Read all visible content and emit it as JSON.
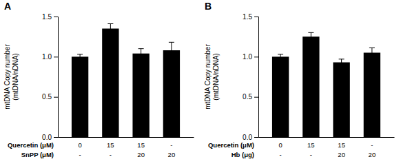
{
  "chart_data": [
    {
      "type": "bar",
      "title": "A",
      "categories": [
        null,
        null,
        null,
        null
      ],
      "values": [
        1.0,
        1.35,
        1.04,
        1.08
      ],
      "errors": [
        0.03,
        0.06,
        0.06,
        0.1
      ],
      "color": "#000000",
      "ylabel": "mtDNA Copy number\n(mtDNA/nDNA)",
      "ylim": [
        0,
        1.5
      ],
      "yticks": [
        {
          "value": 0.0,
          "label": "0.0"
        },
        {
          "value": 0.5,
          "label": "0.5"
        },
        {
          "value": 1.0,
          "label": "1.0"
        },
        {
          "value": 1.5,
          "label": "1.5"
        }
      ],
      "label_rows": [
        {
          "name": "Quercetin (μM)",
          "labels": [
            "0",
            "15",
            "15",
            "-"
          ]
        },
        {
          "name": "SnPP (μM)",
          "labels": [
            "-",
            "-",
            "20",
            "20"
          ]
        }
      ]
    },
    {
      "type": "bar",
      "title": "B",
      "categories": [
        null,
        null,
        null,
        null
      ],
      "values": [
        1.0,
        1.25,
        0.93,
        1.05
      ],
      "errors": [
        0.03,
        0.05,
        0.04,
        0.06
      ],
      "color": "#000000",
      "ylabel": "mtDNA Copy number\n(mtDNA/nDNA)",
      "ylim": [
        0,
        1.5
      ],
      "yticks": [
        {
          "value": 0.0,
          "label": "0.0"
        },
        {
          "value": 0.5,
          "label": "0.5"
        },
        {
          "value": 1.0,
          "label": "1.0"
        },
        {
          "value": 1.5,
          "label": "1.5"
        }
      ],
      "label_rows": [
        {
          "name": "Quercetin (μM)",
          "labels": [
            "0",
            "15",
            "15",
            "-"
          ]
        },
        {
          "name": "Hb (μg)",
          "labels": [
            "-",
            "-",
            "20",
            "20"
          ]
        }
      ]
    }
  ]
}
